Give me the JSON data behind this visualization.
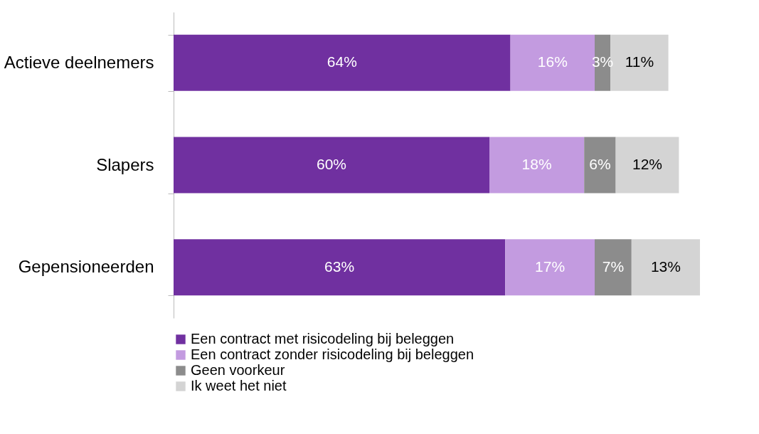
{
  "chart_data": {
    "type": "bar",
    "orientation": "horizontal",
    "stacked": true,
    "legend": "bottom",
    "tick_labels": "y",
    "xlim": [
      0,
      100
    ],
    "categories": [
      "Actieve deelnemers",
      "Slapers",
      "Gepensioneerden"
    ],
    "series": [
      {
        "name": "Een contract met risicodeling bij beleggen",
        "color": "#7030a0",
        "values": [
          64,
          60,
          63
        ],
        "value_labels": [
          "64%",
          "60%",
          "63%"
        ]
      },
      {
        "name": "Een contract zonder risicodeling bij beleggen",
        "color": "#c39be0",
        "values": [
          16,
          18,
          17
        ],
        "value_labels": [
          "16%",
          "18%",
          "17%"
        ]
      },
      {
        "name": "Geen voorkeur",
        "color": "#8c8c8c",
        "values": [
          3,
          6,
          7
        ],
        "value_labels": [
          "3%",
          "6%",
          "7%"
        ]
      },
      {
        "name": "Ik weet het niet",
        "color": "#d4d4d4",
        "values": [
          11,
          12,
          13
        ],
        "value_labels": [
          "11%",
          "12%",
          "13%"
        ]
      }
    ]
  }
}
